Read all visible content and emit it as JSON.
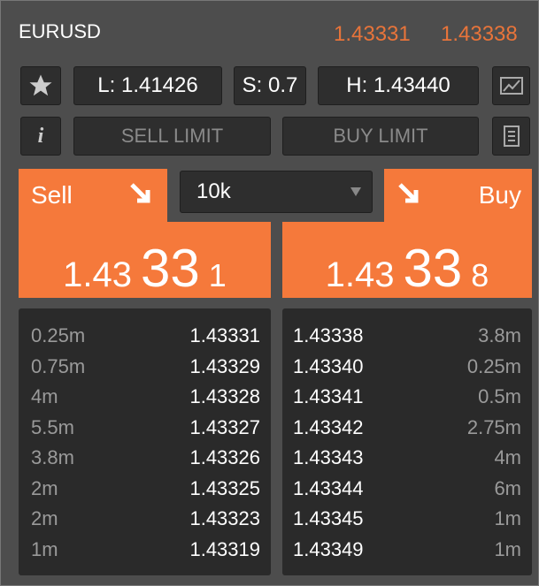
{
  "header": {
    "symbol": "EURUSD",
    "bid": "1.43331",
    "ask": "1.43338"
  },
  "stats": {
    "low": "L: 1.41426",
    "spread": "S: 0.7",
    "high": "H: 1.43440"
  },
  "buttons": {
    "sell_limit": "SELL LIMIT",
    "buy_limit": "BUY LIMIT",
    "sell": "Sell",
    "buy": "Buy",
    "info": "i"
  },
  "volume": "10k",
  "sell_price": {
    "big": "1.43",
    "pips": "33",
    "fraction": "1"
  },
  "buy_price": {
    "big": "1.43",
    "pips": "33",
    "fraction": "8"
  },
  "depth": {
    "bids": [
      [
        "0.25m",
        "1.43331"
      ],
      [
        "0.75m",
        "1.43329"
      ],
      [
        "4m",
        "1.43328"
      ],
      [
        "5.5m",
        "1.43327"
      ],
      [
        "3.8m",
        "1.43326"
      ],
      [
        "2m",
        "1.43325"
      ],
      [
        "2m",
        "1.43323"
      ],
      [
        "1m",
        "1.43319"
      ]
    ],
    "asks": [
      [
        "1.43338",
        "3.8m"
      ],
      [
        "1.43340",
        "0.25m"
      ],
      [
        "1.43341",
        "0.5m"
      ],
      [
        "1.43342",
        "2.75m"
      ],
      [
        "1.43343",
        "4m"
      ],
      [
        "1.43344",
        "6m"
      ],
      [
        "1.43345",
        "1m"
      ],
      [
        "1.43349",
        "1m"
      ]
    ]
  }
}
